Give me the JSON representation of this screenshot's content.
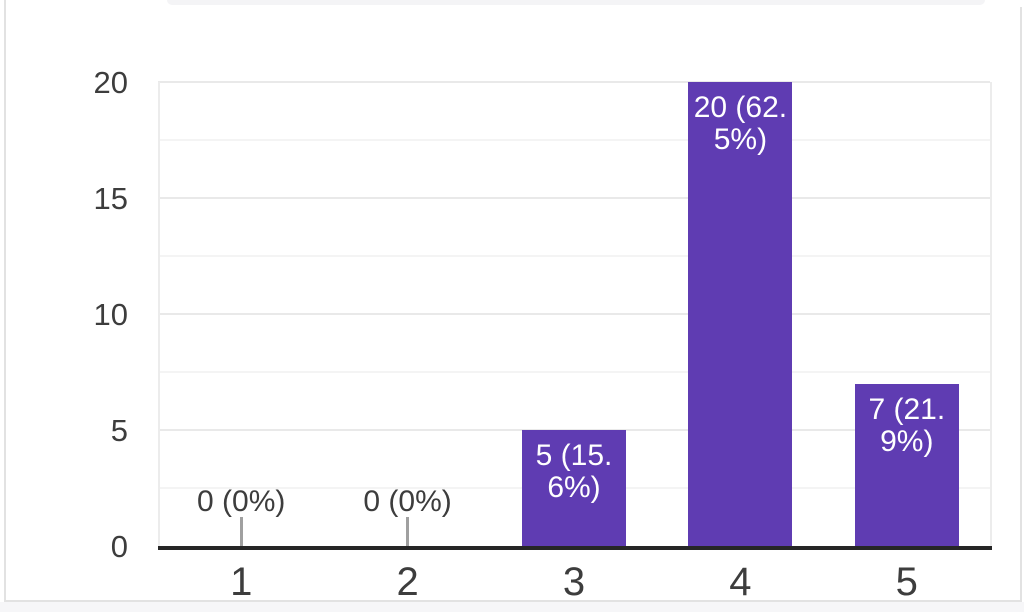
{
  "page": {
    "description": "Bar chart summary card of form responses on a 1-to-5 scale",
    "colors": {
      "background": "#ffffff",
      "top_strip": "#f4f4f6",
      "card_border": "#e2e2e2",
      "below_card_bg": "#f6f6f8",
      "bar": "#5f3cb2",
      "bar_label_text": "#ffffff",
      "axis_line": "#262626",
      "grid_major": "#e9e9e9",
      "grid_minor": "#f4f4f4",
      "plot_frame": "#ececec",
      "tick_text": "#3d3d3d",
      "zero_label_text": "#3d3d3d",
      "zero_stub": "#a0a0a0"
    }
  },
  "chart_data": {
    "type": "bar",
    "title": "",
    "xlabel": "",
    "ylabel": "",
    "categories": [
      "1",
      "2",
      "3",
      "4",
      "5"
    ],
    "values": [
      0,
      0,
      5,
      20,
      7
    ],
    "counts": [
      0,
      0,
      5,
      20,
      7
    ],
    "percentages": [
      "0%",
      "0%",
      "15.6%",
      "62.5%",
      "21.9%"
    ],
    "bar_label_lines": [
      [
        "0 (0%)"
      ],
      [
        "0 (0%)"
      ],
      [
        "5 (15.",
        "6%)"
      ],
      [
        "20 (62.",
        "5%)"
      ],
      [
        "7 (21.",
        "9%)"
      ]
    ],
    "y_ticks": [
      "0",
      "5",
      "10",
      "15",
      "20"
    ],
    "y_tick_values": [
      0,
      5,
      10,
      15,
      20
    ],
    "ylim": [
      0,
      20
    ],
    "minor_grid_step": 2.5,
    "grid": "on",
    "legend_position": "none"
  }
}
